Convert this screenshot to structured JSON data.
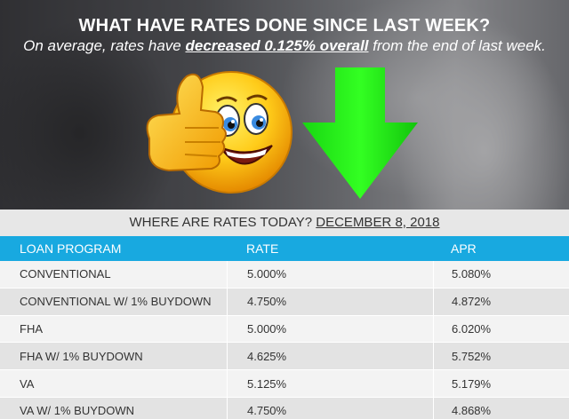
{
  "headline": "WHAT HAVE RATES DONE SINCE LAST WEEK?",
  "subline": {
    "prefix": "On average, rates have ",
    "emphasis": "decreased 0.125% overall",
    "suffix": " from the end of last week."
  },
  "rates_header": {
    "label": "WHERE ARE RATES TODAY? ",
    "date": "DECEMBER 8, 2018"
  },
  "table": {
    "columns": [
      "LOAN PROGRAM",
      "RATE",
      "APR"
    ],
    "rows": [
      {
        "program": "CONVENTIONAL",
        "rate": "5.000%",
        "apr": "5.080%"
      },
      {
        "program": "CONVENTIONAL W/ 1% BUYDOWN",
        "rate": "4.750%",
        "apr": "4.872%"
      },
      {
        "program": "FHA",
        "rate": "5.000%",
        "apr": "6.020%"
      },
      {
        "program": "FHA W/ 1% BUYDOWN",
        "rate": "4.625%",
        "apr": "5.752%"
      },
      {
        "program": "VA",
        "rate": "5.125%",
        "apr": "5.179%"
      },
      {
        "program": "VA W/ 1% BUYDOWN",
        "rate": "4.750%",
        "apr": "4.868%"
      }
    ]
  },
  "icons": {
    "emoji": "thumbs-up-emoji-icon",
    "arrow": "down-arrow-icon"
  },
  "colors": {
    "header_blue": "#18a9e0",
    "arrow_green": "#22f01a",
    "emoji_yellow": "#ffcc1a"
  }
}
